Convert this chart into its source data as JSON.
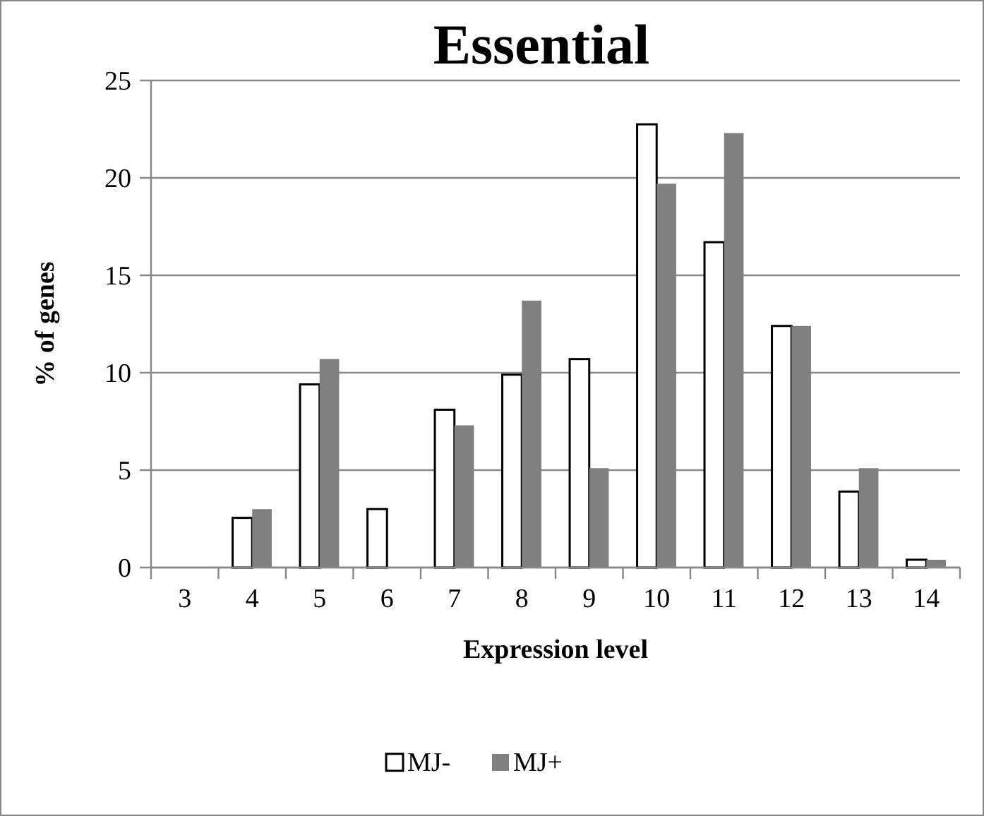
{
  "chart_data": {
    "type": "bar",
    "title": "Essential",
    "xlabel": "Expression level",
    "ylabel": "% of genes",
    "categories": [
      "3",
      "4",
      "5",
      "6",
      "7",
      "8",
      "9",
      "10",
      "11",
      "12",
      "13",
      "14"
    ],
    "series": [
      {
        "name": "MJ-",
        "color": "#ffffff",
        "values": [
          0,
          2.55,
          9.4,
          3.0,
          8.1,
          9.9,
          10.7,
          22.75,
          16.7,
          12.4,
          3.9,
          0.4
        ]
      },
      {
        "name": "MJ+",
        "color": "#808080",
        "values": [
          0,
          3.0,
          10.7,
          0,
          7.3,
          13.7,
          5.1,
          19.7,
          22.3,
          12.4,
          5.1,
          0.4
        ]
      }
    ],
    "ylim": [
      0,
      25
    ],
    "yticks": [
      0,
      5,
      10,
      15,
      20,
      25
    ],
    "grid": "y",
    "legend": "bottom"
  }
}
